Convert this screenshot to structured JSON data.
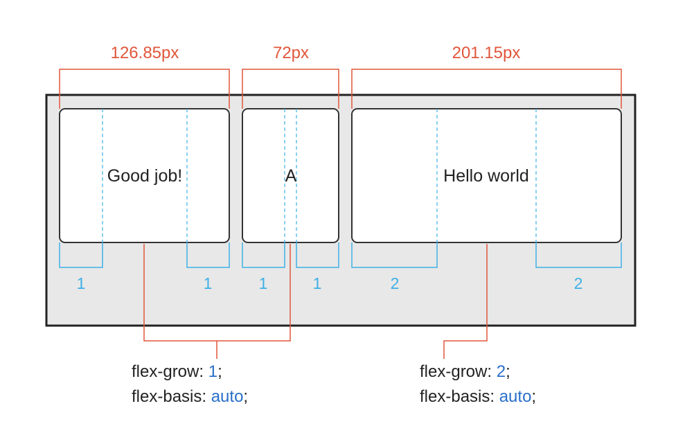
{
  "colors": {
    "dimension": "#e0563a",
    "grow": "#3db0e6",
    "container_fill": "#e8e8e8",
    "container_stroke": "#222222",
    "item_fill": "#ffffff",
    "item_stroke": "#333333",
    "code_value": "#2a6fc9",
    "code_text": "#222222"
  },
  "items": [
    {
      "text": "Good job!",
      "width_label": "126.85px",
      "grow_left": "1",
      "grow_right": "1"
    },
    {
      "text": "A",
      "width_label": "72px",
      "grow_left": "1",
      "grow_right": "1"
    },
    {
      "text": "Hello world",
      "width_label": "201.15px",
      "grow_left": "2",
      "grow_right": "2"
    }
  ],
  "code_blocks": [
    {
      "line1_prop": "flex-grow: ",
      "line1_value": "1",
      "line1_end": ";",
      "line2_prop": "flex-basis: ",
      "line2_value": "auto",
      "line2_end": ";"
    },
    {
      "line1_prop": "flex-grow: ",
      "line1_value": "2",
      "line1_end": ";",
      "line2_prop": "flex-basis: ",
      "line2_value": "auto",
      "line2_end": ";"
    }
  ]
}
